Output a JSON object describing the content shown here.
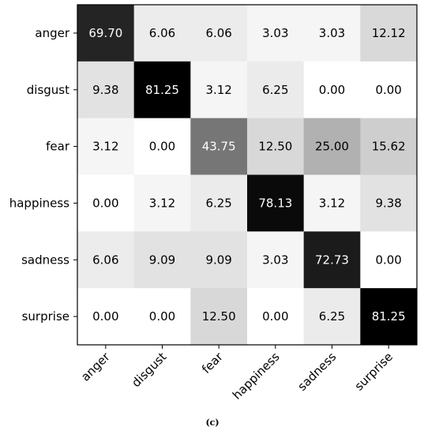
{
  "caption": "(c)",
  "chart_data": {
    "type": "heatmap",
    "title": "",
    "xlabel": "",
    "ylabel": "",
    "colormap": "greys",
    "value_range": [
      0,
      81.25
    ],
    "x_categories": [
      "anger",
      "disgust",
      "fear",
      "happiness",
      "sadness",
      "surprise"
    ],
    "y_categories": [
      "anger",
      "disgust",
      "fear",
      "happiness",
      "sadness",
      "surprise"
    ],
    "values": [
      [
        "69.70",
        "6.06",
        "6.06",
        "3.03",
        "3.03",
        "12.12"
      ],
      [
        "9.38",
        "81.25",
        "3.12",
        "6.25",
        "0.00",
        "0.00"
      ],
      [
        "3.12",
        "0.00",
        "43.75",
        "12.50",
        "25.00",
        "15.62"
      ],
      [
        "0.00",
        "3.12",
        "6.25",
        "78.13",
        "3.12",
        "9.38"
      ],
      [
        "6.06",
        "9.09",
        "9.09",
        "3.03",
        "72.73",
        "0.00"
      ],
      [
        "0.00",
        "0.00",
        "12.50",
        "0.00",
        "6.25",
        "81.25"
      ]
    ]
  }
}
